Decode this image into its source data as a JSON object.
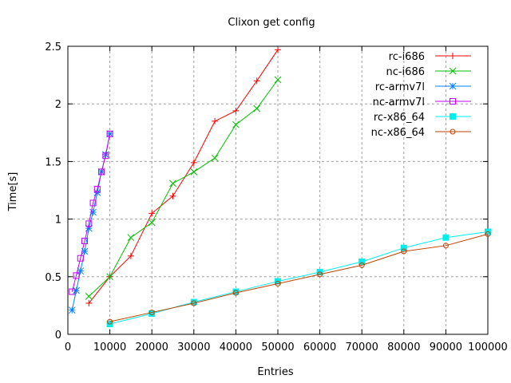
{
  "chart_data": {
    "type": "line",
    "title": "Clixon get config",
    "xlabel": "Entries",
    "ylabel": "Time[s]",
    "xlim": [
      0,
      100000
    ],
    "ylim": [
      0,
      2.5
    ],
    "xticks": [
      "0",
      "10000",
      "20000",
      "30000",
      "40000",
      "50000",
      "60000",
      "70000",
      "80000",
      "90000",
      "100000"
    ],
    "yticks": [
      "0",
      "0.5",
      "1",
      "1.5",
      "2",
      "2.5"
    ],
    "grid": true,
    "legend_position": "top-right",
    "series": [
      {
        "name": "rc-i686",
        "color": "#ff0000",
        "marker": "plus",
        "x": [
          5000,
          10000,
          15000,
          20000,
          25000,
          30000,
          35000,
          40000,
          45000,
          50000
        ],
        "y": [
          0.27,
          0.5,
          0.68,
          1.05,
          1.2,
          1.49,
          1.85,
          1.94,
          2.2,
          2.47
        ]
      },
      {
        "name": "nc-i686",
        "color": "#00c000",
        "marker": "cross",
        "x": [
          5000,
          10000,
          15000,
          20000,
          25000,
          30000,
          35000,
          40000,
          45000,
          50000
        ],
        "y": [
          0.33,
          0.5,
          0.84,
          0.97,
          1.31,
          1.41,
          1.53,
          1.82,
          1.96,
          2.21
        ]
      },
      {
        "name": "rc-armv7l",
        "color": "#0080ff",
        "marker": "star",
        "x": [
          1000,
          2000,
          3000,
          4000,
          5000,
          6000,
          7000,
          8000,
          9000,
          10000
        ],
        "y": [
          0.21,
          0.38,
          0.55,
          0.72,
          0.92,
          1.06,
          1.23,
          1.41,
          1.56,
          1.74
        ]
      },
      {
        "name": "nc-armv7l",
        "color": "#c000ff",
        "marker": "box",
        "x": [
          1000,
          2000,
          3000,
          4000,
          5000,
          6000,
          7000,
          8000,
          9000,
          10000
        ],
        "y": [
          0.37,
          0.51,
          0.66,
          0.81,
          0.96,
          1.14,
          1.26,
          1.41,
          1.55,
          1.74
        ]
      },
      {
        "name": "rc-x86_64",
        "color": "#00eeee",
        "marker": "filled-box",
        "x": [
          10000,
          20000,
          30000,
          40000,
          50000,
          60000,
          70000,
          80000,
          90000,
          100000
        ],
        "y": [
          0.09,
          0.18,
          0.28,
          0.37,
          0.46,
          0.54,
          0.63,
          0.75,
          0.84,
          0.89
        ]
      },
      {
        "name": "nc-x86_64",
        "color": "#c04000",
        "marker": "circle",
        "x": [
          10000,
          20000,
          30000,
          40000,
          50000,
          60000,
          70000,
          80000,
          90000,
          100000
        ],
        "y": [
          0.11,
          0.19,
          0.27,
          0.36,
          0.44,
          0.52,
          0.6,
          0.72,
          0.77,
          0.87
        ]
      }
    ]
  }
}
